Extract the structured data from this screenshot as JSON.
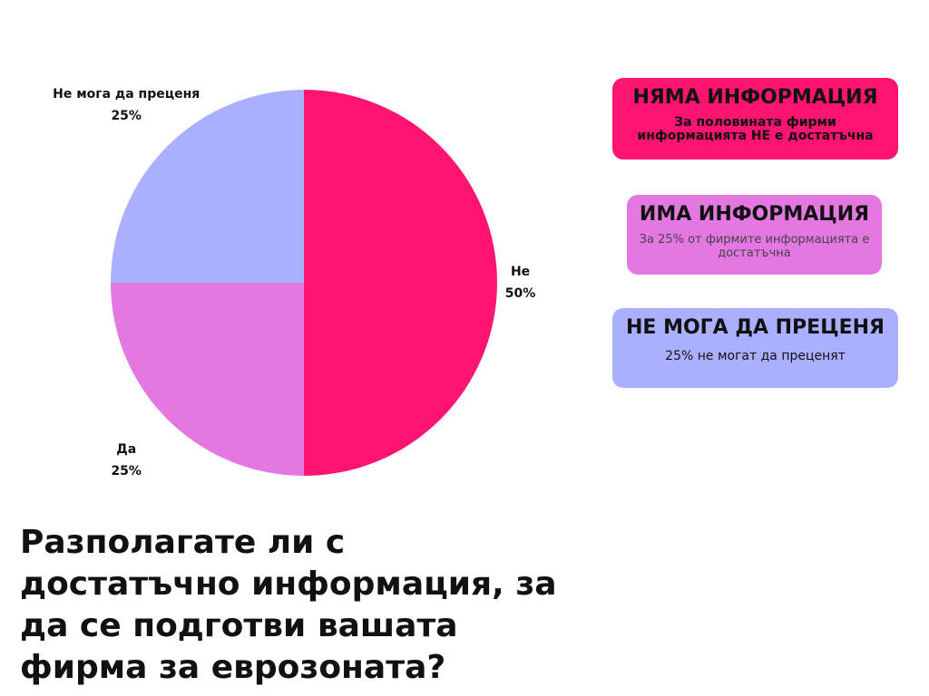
{
  "chart_data": {
    "type": "pie",
    "title": "Разполагате ли с достатъчно информация, за да се подготви вашата фирма за еврозоната?",
    "categories": [
      "Не",
      "Да",
      "Не мога да преценя"
    ],
    "values": [
      50,
      25,
      25
    ],
    "value_labels": [
      "50%",
      "25%",
      "25%"
    ],
    "colors": [
      "#ff1472",
      "#e577e3",
      "#aab0ff"
    ]
  },
  "cards": [
    {
      "title": "НЯМА ИНФОРМАЦИЯ",
      "text": "За половината фирми информацията НЕ е достатъчна",
      "color": "#ff1472"
    },
    {
      "title": "ИМА ИНФОРМАЦИЯ",
      "text": "За 25% от фирмите информацията е достатъчна",
      "color": "#e577e3"
    },
    {
      "title": "НЕ МОГА ДА ПРЕЦЕНЯ",
      "text": "25% не могат да преценят",
      "color": "#aab0ff"
    }
  ]
}
